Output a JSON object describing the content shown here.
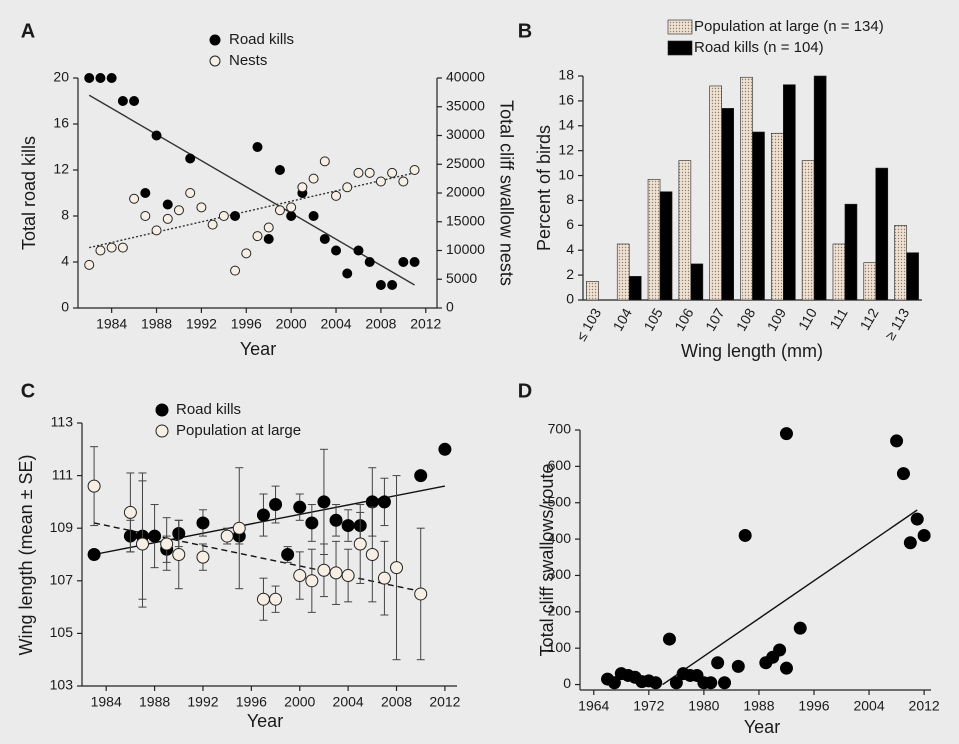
{
  "chart_data": [
    {
      "type": "scatter",
      "panel": "A",
      "xlabel": "Year",
      "ylabel": "Total road kills",
      "y2label": "Total cliff swallow nests",
      "xlim": [
        1981,
        2013
      ],
      "xticks": [
        1984,
        1988,
        1992,
        1996,
        2000,
        2004,
        2008,
        2012
      ],
      "ylim": [
        0,
        20
      ],
      "yticks": [
        0,
        4,
        8,
        12,
        16,
        20
      ],
      "y2lim": [
        0,
        40000
      ],
      "y2ticks": [
        0,
        5000,
        10000,
        15000,
        20000,
        25000,
        30000,
        35000,
        40000
      ],
      "series": [
        {
          "name": "Road kills",
          "color": "#000000",
          "fill": "#000000",
          "x": [
            1982,
            1983,
            1984,
            1985,
            1986,
            1987,
            1988,
            1989,
            1991,
            1995,
            1997,
            1998,
            1999,
            2000,
            2001,
            2002,
            2003,
            2004,
            2005,
            2006,
            2007,
            2008,
            2009,
            2010,
            2011
          ],
          "values": [
            20,
            20,
            20,
            18,
            18,
            10,
            15,
            9,
            13,
            8,
            14,
            6,
            12,
            8,
            10,
            8,
            6,
            5,
            3,
            5,
            4,
            2,
            2,
            4,
            4
          ]
        },
        {
          "name": "Nests",
          "axis": "y2",
          "color": "#222222",
          "fill": "#f7efe4",
          "x": [
            1982,
            1983,
            1984,
            1985,
            1986,
            1987,
            1988,
            1989,
            1990,
            1991,
            1992,
            1993,
            1994,
            1995,
            1996,
            1997,
            1998,
            1999,
            2000,
            2001,
            2002,
            2003,
            2004,
            2005,
            2006,
            2007,
            2008,
            2009,
            2010,
            2011
          ],
          "values": [
            7500,
            10000,
            10500,
            10500,
            19000,
            16000,
            13500,
            15500,
            17000,
            20000,
            17500,
            14500,
            16000,
            6500,
            9500,
            12500,
            14000,
            17000,
            17500,
            21000,
            22500,
            25500,
            19500,
            21000,
            23500,
            23500,
            22000,
            23500,
            22000,
            24000
          ]
        }
      ],
      "trendlines": [
        {
          "x": [
            1982,
            2011
          ],
          "values": [
            18.5,
            2
          ],
          "color": "#333333",
          "dash": "none"
        },
        {
          "x": [
            1982,
            2011
          ],
          "values": [
            10500,
            23500
          ],
          "axis": "y2",
          "color": "#333333",
          "dash": "2,2"
        }
      ]
    },
    {
      "type": "bar",
      "panel": "B",
      "xlabel": "Wing length (mm)",
      "ylabel": "Percent of birds",
      "categories": [
        "≤ 103",
        "104",
        "105",
        "106",
        "107",
        "108",
        "109",
        "110",
        "111",
        "112",
        "≥ 113"
      ],
      "ylim": [
        0,
        18
      ],
      "yticks": [
        0,
        2,
        4,
        6,
        8,
        10,
        12,
        14,
        16,
        18
      ],
      "series": [
        {
          "name": "Population at large (n = 134)",
          "color": "#e6d6c5",
          "pattern": "dots",
          "values": [
            1.5,
            4.5,
            9.7,
            11.2,
            17.2,
            17.9,
            13.4,
            11.2,
            4.5,
            3,
            6
          ]
        },
        {
          "name": "Road kills (n = 104)",
          "color": "#000000",
          "values": [
            0,
            1.9,
            8.7,
            2.9,
            15.4,
            13.5,
            17.3,
            18,
            7.7,
            10.6,
            3.8
          ]
        }
      ]
    },
    {
      "type": "scatter",
      "panel": "C",
      "xlabel": "Year",
      "ylabel": "Wing length (mean ± SE)",
      "xlim": [
        1982,
        2013
      ],
      "xticks": [
        1984,
        1988,
        1992,
        1996,
        2000,
        2004,
        2008,
        2012
      ],
      "ylim": [
        103,
        113
      ],
      "yticks": [
        103,
        105,
        107,
        109,
        111,
        113
      ],
      "series": [
        {
          "name": "Road kills",
          "color": "#000000",
          "fill": "#000000",
          "x": [
            1983,
            1986,
            1987,
            1988,
            1989,
            1990,
            1992,
            1995,
            1997,
            1998,
            1999,
            2000,
            2001,
            2002,
            2003,
            2004,
            2005,
            2006,
            2007,
            2010,
            2012
          ],
          "values": [
            108.0,
            108.7,
            108.7,
            108.7,
            108.2,
            108.8,
            109.2,
            108.7,
            109.5,
            109.9,
            108.0,
            109.8,
            109.2,
            110.0,
            109.3,
            109.1,
            109.1,
            110.0,
            110.0,
            111.0,
            112.0
          ],
          "errors": [
            0,
            0.6,
            2.4,
            1.2,
            0.5,
            0.5,
            0.5,
            0.3,
            0.8,
            0.7,
            0.3,
            0.5,
            0.7,
            2.0,
            0.6,
            0.6,
            0.5,
            1.3,
            0.9,
            0,
            0
          ]
        },
        {
          "name": "Population at large",
          "color": "#222222",
          "fill": "#f7efe4",
          "x": [
            1983,
            1986,
            1987,
            1989,
            1990,
            1992,
            1994,
            1995,
            1997,
            1998,
            2000,
            2001,
            2002,
            2003,
            2004,
            2005,
            2006,
            2007,
            2008,
            2010
          ],
          "values": [
            110.6,
            109.6,
            108.4,
            108.4,
            108.0,
            107.9,
            108.7,
            109.0,
            106.3,
            106.3,
            107.2,
            107.0,
            107.4,
            107.3,
            107.2,
            108.4,
            108.0,
            107.1,
            107.5,
            106.5
          ],
          "errors": [
            1.5,
            1.5,
            2.4,
            1.0,
            1.3,
            0.5,
            0.3,
            2.3,
            0.8,
            0.5,
            0.9,
            1.2,
            1.0,
            1.2,
            1.0,
            1.5,
            1.8,
            1.4,
            3.5,
            2.5
          ]
        }
      ],
      "trendlines": [
        {
          "x": [
            1983,
            2012
          ],
          "values": [
            108.0,
            110.6
          ],
          "color": "#111111",
          "dash": "none"
        },
        {
          "x": [
            1983,
            2010
          ],
          "values": [
            109.2,
            106.6
          ],
          "color": "#111111",
          "dash": "6,4"
        }
      ]
    },
    {
      "type": "scatter",
      "panel": "D",
      "xlabel": "Year",
      "ylabel": "Total cliff swallows/route",
      "xlim": [
        1962,
        2013
      ],
      "xticks": [
        1964,
        1972,
        1980,
        1988,
        1996,
        2004,
        2012
      ],
      "ylim": [
        -15,
        700
      ],
      "yticks": [
        0,
        100,
        200,
        300,
        400,
        500,
        600,
        700
      ],
      "series": [
        {
          "color": "#000000",
          "fill": "#000000",
          "x": [
            1966,
            1967,
            1968,
            1969,
            1970,
            1971,
            1972,
            1973,
            1975,
            1976,
            1977,
            1978,
            1979,
            1980,
            1981,
            1982,
            1983,
            1985,
            1986,
            1989,
            1990,
            1991,
            1992,
            1992,
            1994,
            2008,
            2009,
            2010,
            2011,
            2012
          ],
          "values": [
            15,
            5,
            30,
            25,
            20,
            8,
            10,
            5,
            125,
            5,
            30,
            25,
            25,
            5,
            5,
            60,
            5,
            50,
            410,
            60,
            75,
            95,
            45,
            690,
            155,
            670,
            580,
            390,
            455,
            410
          ]
        }
      ],
      "trendlines": [
        {
          "x": [
            1974,
            2011
          ],
          "values": [
            0,
            480
          ],
          "color": "#111111",
          "dash": "none"
        }
      ]
    }
  ]
}
